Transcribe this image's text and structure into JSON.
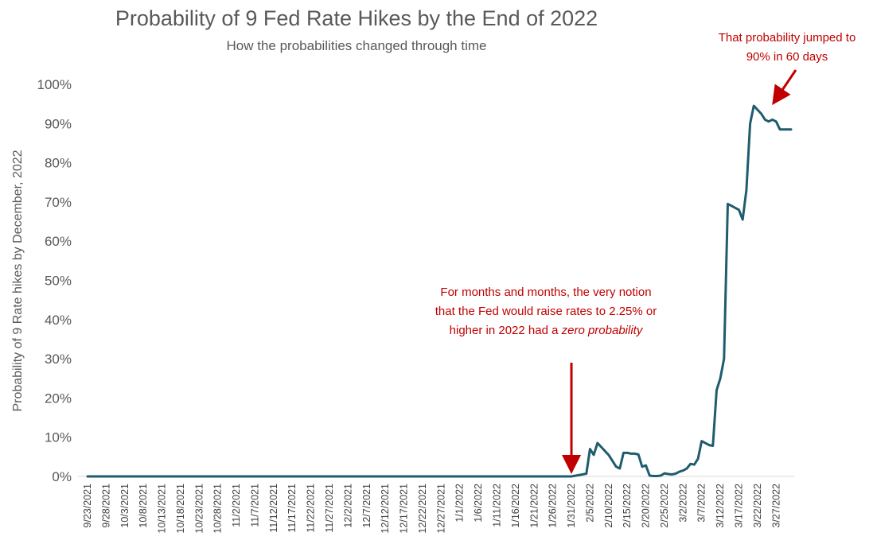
{
  "chart_data": {
    "type": "line",
    "title": "Probability of 9 Fed Rate Hikes by the End of 2022",
    "subtitle": "How the probabilities changed through time",
    "ylabel": "Probability of 9 Rate hikes by December, 2022",
    "xlabel": "",
    "ylim": [
      0,
      100
    ],
    "y_unit": "%",
    "y_ticks": [
      "0%",
      "10%",
      "20%",
      "30%",
      "40%",
      "50%",
      "60%",
      "70%",
      "80%",
      "90%",
      "100%"
    ],
    "x_tick_labels": [
      "9/23/2021",
      "9/28/2021",
      "10/3/2021",
      "10/8/2021",
      "10/13/2021",
      "10/18/2021",
      "10/23/2021",
      "10/28/2021",
      "11/2/2021",
      "11/7/2021",
      "11/12/2021",
      "11/17/2021",
      "11/22/2021",
      "11/27/2021",
      "12/2/2021",
      "12/7/2021",
      "12/12/2021",
      "12/17/2021",
      "12/22/2021",
      "12/27/2021",
      "1/1/2022",
      "1/6/2022",
      "1/11/2022",
      "1/16/2022",
      "1/21/2022",
      "1/26/2022",
      "1/31/2022",
      "2/5/2022",
      "2/10/2022",
      "2/15/2022",
      "2/20/2022",
      "2/25/2022",
      "3/2/2022",
      "3/7/2022",
      "3/12/2022",
      "3/17/2022",
      "3/22/2022",
      "3/27/2022"
    ],
    "x_range": [
      "2021-09-23",
      "2022-03-31"
    ],
    "grid": false,
    "legend": "none",
    "color": "#1f5c6e",
    "series": [
      {
        "x": [
          "2021-09-23",
          "2022-01-31",
          "2022-02-03",
          "2022-02-04",
          "2022-02-05",
          "2022-02-06",
          "2022-02-07",
          "2022-02-08",
          "2022-02-09",
          "2022-02-10",
          "2022-02-11",
          "2022-02-12",
          "2022-02-13",
          "2022-02-14",
          "2022-02-15",
          "2022-02-16",
          "2022-02-17",
          "2022-02-18",
          "2022-02-19",
          "2022-02-20",
          "2022-02-21",
          "2022-02-22",
          "2022-02-23",
          "2022-02-24",
          "2022-02-25",
          "2022-02-26",
          "2022-02-27",
          "2022-02-28",
          "2022-03-01",
          "2022-03-02",
          "2022-03-03",
          "2022-03-04",
          "2022-03-05",
          "2022-03-06",
          "2022-03-07",
          "2022-03-08",
          "2022-03-09",
          "2022-03-10",
          "2022-03-11",
          "2022-03-12",
          "2022-03-13",
          "2022-03-14",
          "2022-03-15",
          "2022-03-16",
          "2022-03-17",
          "2022-03-18",
          "2022-03-19",
          "2022-03-20",
          "2022-03-21",
          "2022-03-22",
          "2022-03-23",
          "2022-03-24",
          "2022-03-25",
          "2022-03-26",
          "2022-03-27",
          "2022-03-28",
          "2022-03-29",
          "2022-03-30",
          "2022-03-31"
        ],
        "values": [
          0,
          0,
          0.5,
          0.7,
          7,
          5.5,
          8.5,
          7.5,
          6.5,
          5.5,
          4,
          2.5,
          2,
          6,
          6,
          5.8,
          5.8,
          5.6,
          2.5,
          2.8,
          0.2,
          0.1,
          0.1,
          0.2,
          0.8,
          0.6,
          0.5,
          0.7,
          1.2,
          1.5,
          2,
          3.2,
          3,
          4.5,
          9,
          8.5,
          8,
          7.8,
          22,
          25,
          30,
          69.5,
          69,
          68.5,
          68,
          65.5,
          73,
          90,
          94.5,
          93.5,
          92.5,
          91,
          90.5,
          91,
          90.5,
          88.5,
          88.5,
          88.5,
          88.5
        ]
      }
    ],
    "annotations": [
      {
        "lines": [
          "For months and months, the very notion",
          "that the Fed would raise rates to 2.25% or",
          "higher in 2022 had a "
        ],
        "emphasis": "zero probability",
        "arrow_to": {
          "x": "2022-01-31",
          "y": 0
        }
      },
      {
        "lines": [
          "That probability jumped to",
          "90% in 60 days"
        ],
        "arrow_to": {
          "x": "2022-03-24",
          "y": 95
        }
      }
    ]
  }
}
